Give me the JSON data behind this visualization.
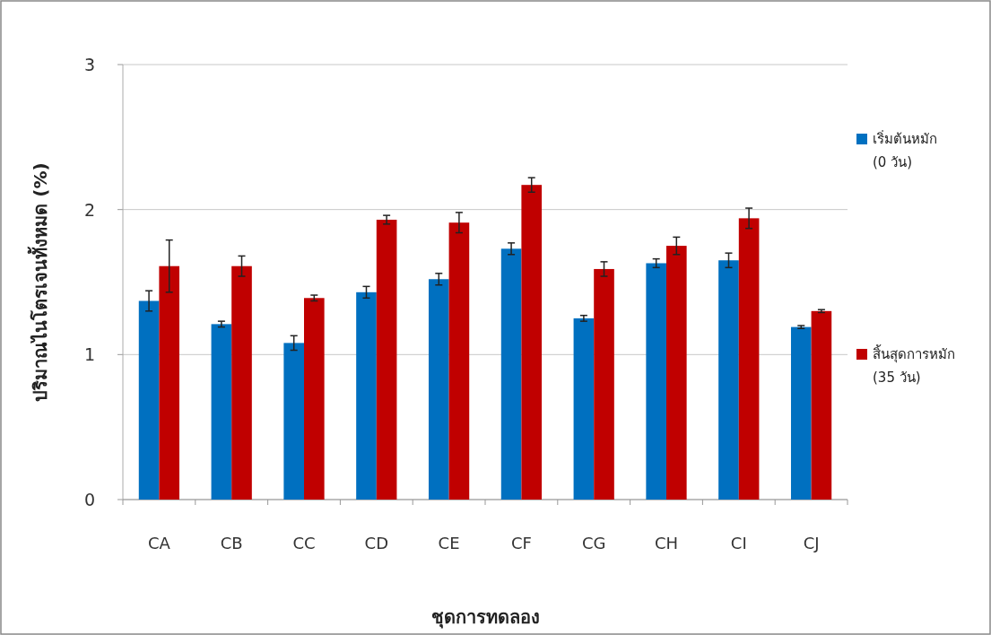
{
  "chart_data": {
    "type": "bar",
    "xlabel": "ชุดการทดลอง",
    "ylabel": "ปริมาณไนโตรเจนทั้งหมด (%)",
    "categories": [
      "CA",
      "CB",
      "CC",
      "CD",
      "CE",
      "CF",
      "CG",
      "CH",
      "CI",
      "CJ"
    ],
    "series": [
      {
        "name": "เริ่มต้นหมัก (0 วัน)",
        "color": "#0070c0",
        "values": [
          1.37,
          1.21,
          1.08,
          1.43,
          1.52,
          1.73,
          1.25,
          1.63,
          1.65,
          1.19
        ],
        "errors": [
          0.07,
          0.02,
          0.05,
          0.04,
          0.04,
          0.04,
          0.02,
          0.03,
          0.05,
          0.01
        ]
      },
      {
        "name": "สิ้นสุดการหมัก (35 วัน)",
        "color": "#c00000",
        "values": [
          1.61,
          1.61,
          1.39,
          1.93,
          1.91,
          2.17,
          1.59,
          1.75,
          1.94,
          1.3
        ],
        "errors": [
          0.18,
          0.07,
          0.02,
          0.03,
          0.07,
          0.05,
          0.05,
          0.06,
          0.07,
          0.01
        ]
      }
    ],
    "ylim": [
      0,
      3
    ],
    "yticks": [
      0,
      1,
      2,
      3
    ],
    "grid": "y",
    "legend": "right"
  }
}
